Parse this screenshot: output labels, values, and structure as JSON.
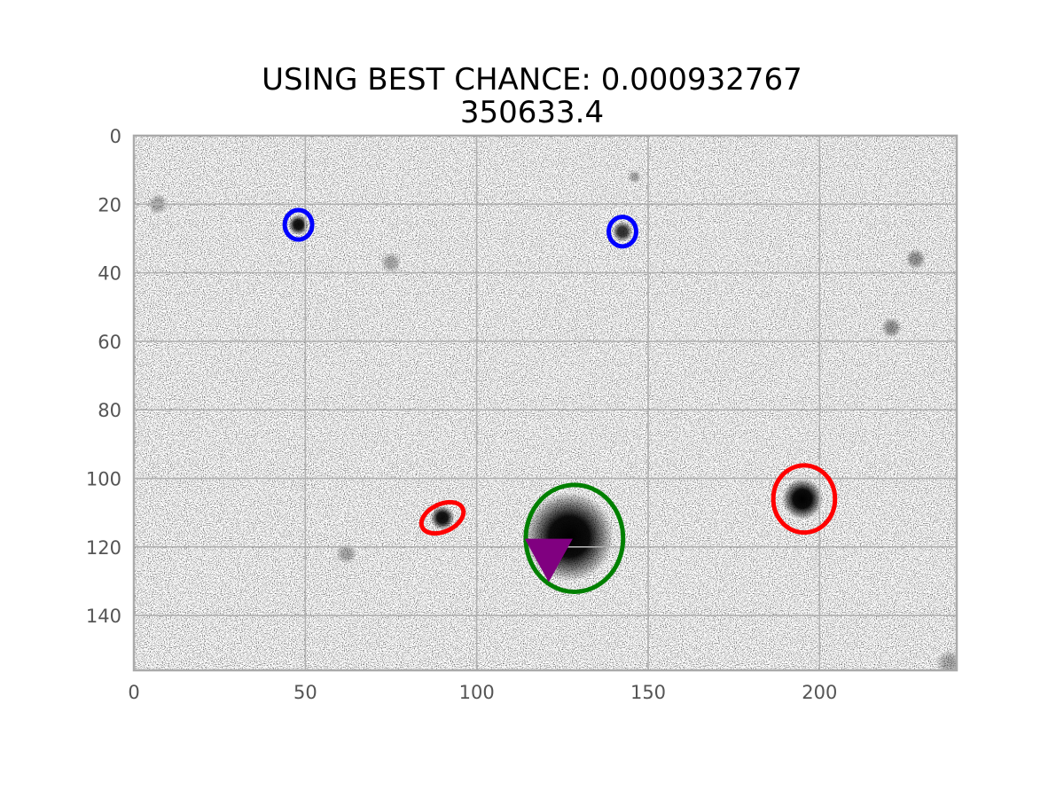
{
  "chart_data": {
    "type": "image",
    "title_line1": "USING BEST CHANCE: 0.000932767",
    "title_line2": "350633.4",
    "xlim": [
      0,
      240
    ],
    "ylim": [
      0,
      156
    ],
    "y_inverted": true,
    "grid": true,
    "x_ticks": [
      0,
      50,
      100,
      150,
      200
    ],
    "y_ticks": [
      0,
      20,
      40,
      60,
      80,
      100,
      120,
      140
    ],
    "sources": [
      {
        "x": 48,
        "y": 26,
        "size": 3,
        "darkness": 0.95
      },
      {
        "x": 142.5,
        "y": 28,
        "size": 3,
        "darkness": 0.8
      },
      {
        "x": 90,
        "y": 111.5,
        "size": 3.5,
        "darkness": 0.95
      },
      {
        "x": 195,
        "y": 106,
        "size": 6,
        "darkness": 1.0
      },
      {
        "x": 127,
        "y": 117,
        "size": 13,
        "darkness": 1.0
      },
      {
        "x": 7,
        "y": 20,
        "size": 3,
        "darkness": 0.3
      },
      {
        "x": 75,
        "y": 37,
        "size": 3,
        "darkness": 0.3
      },
      {
        "x": 228,
        "y": 36,
        "size": 3,
        "darkness": 0.4
      },
      {
        "x": 221,
        "y": 56,
        "size": 3,
        "darkness": 0.4
      },
      {
        "x": 62,
        "y": 122,
        "size": 3,
        "darkness": 0.3
      },
      {
        "x": 146,
        "y": 12,
        "size": 2,
        "darkness": 0.3
      },
      {
        "x": 238,
        "y": 154,
        "size": 4,
        "darkness": 0.3
      }
    ],
    "ellipses": [
      {
        "color": "blue",
        "x": 48,
        "y": 26,
        "rx": 4,
        "ry": 4.3,
        "angle": 0
      },
      {
        "color": "blue",
        "x": 142.5,
        "y": 28,
        "rx": 4,
        "ry": 4.3,
        "angle": 0
      },
      {
        "color": "red",
        "x": 90,
        "y": 111.5,
        "rx": 6.5,
        "ry": 4,
        "angle": -25
      },
      {
        "color": "red",
        "x": 195.5,
        "y": 106,
        "rx": 9,
        "ry": 9.8,
        "angle": 0
      },
      {
        "color": "green",
        "x": 128.5,
        "y": 117.5,
        "rx": 14.2,
        "ry": 15.6,
        "angle": 0
      }
    ],
    "marker": {
      "shape": "triangle-down",
      "color": "purple",
      "x": 121,
      "y": 122
    }
  }
}
